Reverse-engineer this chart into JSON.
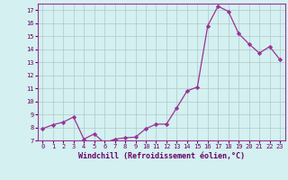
{
  "x": [
    0,
    1,
    2,
    3,
    4,
    5,
    6,
    7,
    8,
    9,
    10,
    11,
    12,
    13,
    14,
    15,
    16,
    17,
    18,
    19,
    20,
    21,
    22,
    23
  ],
  "y": [
    7.9,
    8.2,
    8.4,
    8.8,
    7.1,
    7.5,
    6.8,
    7.1,
    7.2,
    7.25,
    7.9,
    8.25,
    8.25,
    9.5,
    10.8,
    11.1,
    15.8,
    17.3,
    16.9,
    15.2,
    14.4,
    13.7,
    14.2,
    13.2
  ],
  "xlabel": "Windchill (Refroidissement éolien,°C)",
  "ylim_min": 7,
  "ylim_max": 17.5,
  "xlim_min": -0.5,
  "xlim_max": 23.5,
  "yticks": [
    7,
    8,
    9,
    10,
    11,
    12,
    13,
    14,
    15,
    16,
    17
  ],
  "xticks": [
    0,
    1,
    2,
    3,
    4,
    5,
    6,
    7,
    8,
    9,
    10,
    11,
    12,
    13,
    14,
    15,
    16,
    17,
    18,
    19,
    20,
    21,
    22,
    23
  ],
  "line_color": "#993399",
  "marker_color": "#993399",
  "bg_color": "#d4f0f0",
  "grid_color": "#b0c8c8",
  "axis_color": "#993399",
  "text_color": "#660066",
  "tick_fontsize": 5.0,
  "xlabel_fontsize": 6.0
}
